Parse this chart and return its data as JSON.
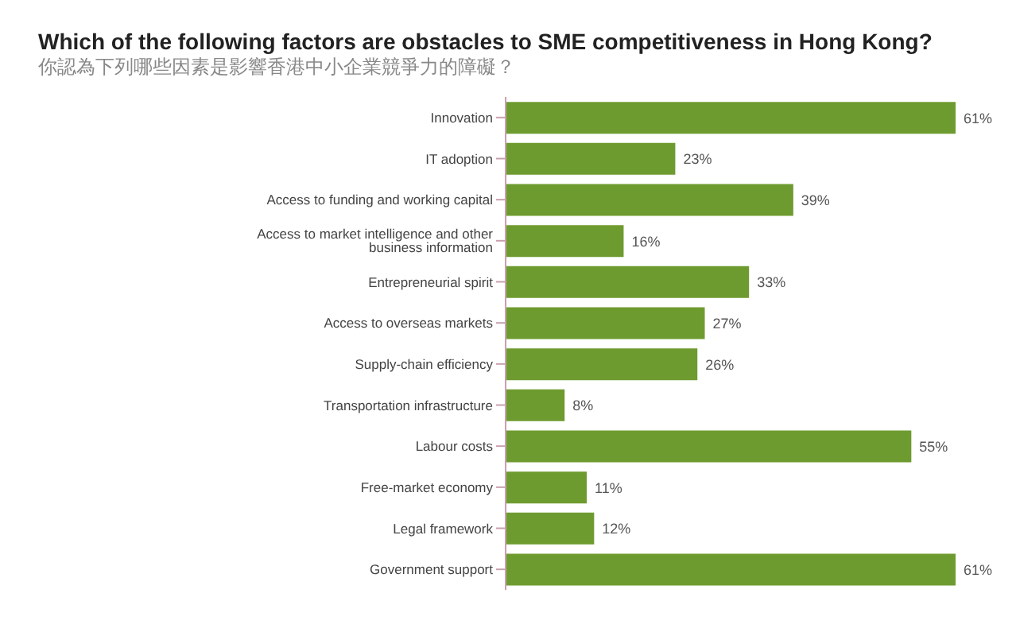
{
  "chart_data": {
    "type": "bar",
    "orientation": "horizontal",
    "title": "Which of the following factors are obstacles to SME competitiveness in Hong Kong?",
    "subtitle": "你認為下列哪些因素是影響香港中小企業競爭力的障礙？",
    "categories": [
      "Innovation",
      "IT adoption",
      "Access to funding and working capital",
      "Access to market intelligence and other business information",
      "Entrepreneurial spirit",
      "Access to overseas markets",
      "Supply-chain efficiency",
      "Transportation infrastructure",
      "Labour costs",
      "Free-market economy",
      "Legal framework",
      "Government support"
    ],
    "values": [
      61,
      23,
      39,
      16,
      33,
      27,
      26,
      8,
      55,
      11,
      12,
      61
    ],
    "value_labels": [
      "61%",
      "23%",
      "39%",
      "16%",
      "33%",
      "27%",
      "26%",
      "8%",
      "55%",
      "11%",
      "12%",
      "61%"
    ],
    "color": "#6e9b2f"
  }
}
